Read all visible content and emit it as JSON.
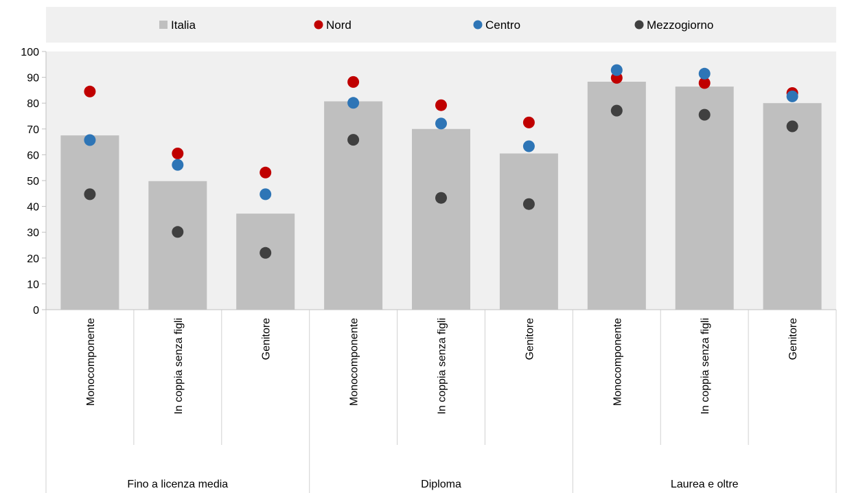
{
  "chart_data": {
    "type": "bar",
    "groups": [
      {
        "label": "Fino a licenza media",
        "categories": [
          "Monocomponente",
          "In coppia senza figli",
          "Genitore"
        ]
      },
      {
        "label": "Diploma",
        "categories": [
          "Monocomponente",
          "In coppia senza figli",
          "Genitore"
        ]
      },
      {
        "label": "Laurea e oltre",
        "categories": [
          "Monocomponente",
          "In coppia senza figli",
          "Genitore"
        ]
      }
    ],
    "categories": [
      "Monocomponente",
      "In coppia senza figli",
      "Genitore",
      "Monocomponente",
      "In coppia senza figli",
      "Genitore",
      "Monocomponente",
      "In coppia senza figli",
      "Genitore"
    ],
    "series": [
      {
        "name": "Italia",
        "kind": "bar",
        "color": "#bfbfbf",
        "values": [
          67.5,
          49.8,
          37.2,
          80.7,
          70.0,
          60.5,
          88.3,
          86.4,
          80.0
        ]
      },
      {
        "name": "Nord",
        "kind": "point",
        "color": "#c00000",
        "values": [
          84.5,
          60.5,
          53.1,
          88.2,
          79.2,
          72.5,
          89.8,
          87.8,
          83.9
        ]
      },
      {
        "name": "Centro",
        "kind": "point",
        "color": "#2e75b6",
        "values": [
          65.7,
          56.1,
          44.7,
          80.1,
          72.1,
          63.3,
          92.8,
          91.4,
          82.6
        ]
      },
      {
        "name": "Mezzogiorno",
        "kind": "point",
        "color": "#404040",
        "values": [
          44.7,
          30.1,
          22.0,
          65.8,
          43.3,
          40.9,
          77.1,
          75.5,
          71.0
        ]
      }
    ],
    "y_ticks": [
      "0",
      "10",
      "20",
      "30",
      "40",
      "50",
      "60",
      "70",
      "80",
      "90",
      "100"
    ],
    "ylim": [
      0,
      100
    ],
    "legend_position": "top",
    "grid": false,
    "title": "",
    "xlabel": "",
    "ylabel": ""
  }
}
